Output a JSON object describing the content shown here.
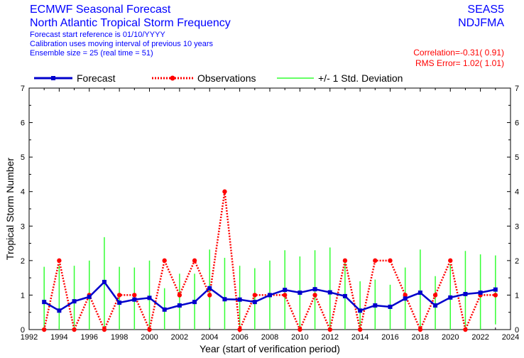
{
  "header": {
    "title_line1": "ECMWF Seasonal Forecast",
    "title_line2": "North Atlantic Tropical Storm Frequency",
    "info1": "Forecast start reference is 01/10/YYYY",
    "info2": "Calibration uses moving interval of previous 10 years",
    "info3": "Ensemble size = 25   (real time = 51)",
    "system": "SEAS5",
    "season": "NDJFMA",
    "correlation": "Correlation=-0.31( 0.91)",
    "rms_error": "RMS Error= 1.02( 1.01)"
  },
  "colors": {
    "forecast": "#0000cc",
    "observations": "#ff0000",
    "std_dev": "#33ff33",
    "header_text": "#0000ff",
    "stats_text": "#ff0000"
  },
  "chart_data": {
    "type": "line",
    "xlabel": "Year (start of verification period)",
    "ylabel": "Tropical Storm Number",
    "xlim": [
      1992,
      2024
    ],
    "ylim": [
      0,
      7
    ],
    "x_ticks": [
      1992,
      1994,
      1996,
      1998,
      2000,
      2002,
      2004,
      2006,
      2008,
      2010,
      2012,
      2014,
      2016,
      2018,
      2020,
      2022,
      2024
    ],
    "y_ticks": [
      0,
      1,
      2,
      3,
      4,
      5,
      6,
      7
    ],
    "grid": false,
    "legend": [
      "Forecast",
      "Observations",
      "+/- 1 Std. Deviation"
    ],
    "legend_placement": "top",
    "x": [
      1993,
      1994,
      1995,
      1996,
      1997,
      1998,
      1999,
      2000,
      2001,
      2002,
      2003,
      2004,
      2005,
      2006,
      2007,
      2008,
      2009,
      2010,
      2011,
      2012,
      2013,
      2014,
      2015,
      2016,
      2017,
      2018,
      2019,
      2020,
      2021,
      2022,
      2023
    ],
    "series": [
      {
        "name": "Forecast",
        "values": [
          0.8,
          0.55,
          0.82,
          0.95,
          1.38,
          0.78,
          0.87,
          0.92,
          0.58,
          0.7,
          0.8,
          1.2,
          0.88,
          0.87,
          0.8,
          1.0,
          1.15,
          1.07,
          1.17,
          1.08,
          0.97,
          0.55,
          0.7,
          0.66,
          0.9,
          1.07,
          0.7,
          0.93,
          1.03,
          1.07,
          1.16
        ]
      },
      {
        "name": "Observations",
        "values": [
          0,
          2,
          0,
          1,
          0,
          1,
          1,
          0,
          2,
          1,
          2,
          1,
          4,
          0,
          1,
          1,
          1,
          0,
          1,
          0,
          2,
          0,
          2,
          2,
          1,
          0,
          1,
          2,
          0,
          1,
          1
        ]
      },
      {
        "name": "+/- 1 Std. Deviation",
        "type": "error_bars",
        "low": [
          0,
          0,
          0,
          0,
          0,
          0,
          0,
          0,
          0,
          0,
          0,
          0.05,
          0,
          0,
          0,
          0,
          0,
          0,
          0,
          0,
          0,
          0,
          0,
          0,
          0,
          0,
          0,
          0,
          0,
          0,
          0.15
        ],
        "high": [
          1.82,
          1.85,
          1.85,
          2.0,
          2.68,
          1.82,
          1.8,
          2.0,
          1.2,
          1.62,
          1.62,
          2.32,
          2.08,
          1.85,
          1.78,
          2.0,
          2.3,
          2.12,
          2.3,
          2.38,
          1.95,
          1.4,
          1.45,
          1.3,
          1.8,
          2.32,
          1.55,
          1.9,
          2.28,
          2.18,
          2.15
        ]
      }
    ]
  }
}
